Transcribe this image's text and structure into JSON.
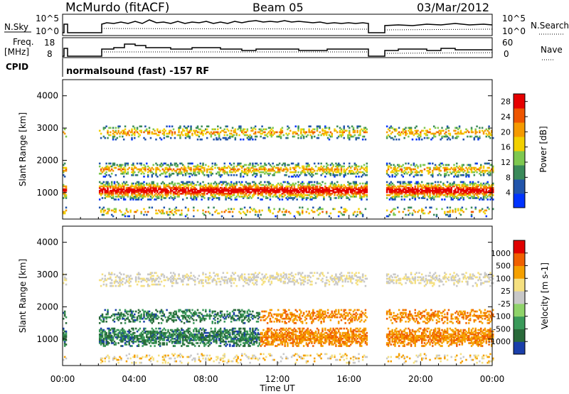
{
  "header": {
    "station": "McMurdo (fitACF)",
    "beam": "Beam 05",
    "date": "03/Mar/2012"
  },
  "sky_panel": {
    "left_label": "N.Sky",
    "right_label": "N.Search",
    "right_ticks": [
      "10^5",
      "10^0"
    ],
    "left_ticks": [
      "10^5",
      "10^0"
    ]
  },
  "freq_panel": {
    "left_label_1": "Freq.",
    "left_label_2": "[MHz]",
    "left_ticks": [
      "18",
      "8"
    ],
    "right_label": "Nave",
    "right_ticks": [
      "60",
      "0"
    ]
  },
  "cpid": {
    "label": "CPID",
    "text": "normalsound (fast) -157 RF"
  },
  "colors": {
    "power_scale": [
      "#0033ff",
      "#2255aa",
      "#3a8a5a",
      "#7ec850",
      "#f2d000",
      "#f59a00",
      "#ee5500",
      "#e60000"
    ],
    "velocity_scale": [
      "#1a3faa",
      "#2a6a3a",
      "#3a9a5a",
      "#8fd36a",
      "#c8c8c8",
      "#f5e080",
      "#f5a000",
      "#f06000",
      "#e00000"
    ]
  },
  "chart_data": [
    {
      "type": "heatmap",
      "title": "",
      "ylabel": "Slant Range [km]",
      "yticks": [
        "1000",
        "2000",
        "3000",
        "4000"
      ],
      "ylim": [
        180,
        4500
      ],
      "xlim": [
        "00:00",
        "24:00"
      ],
      "colorbar": {
        "label": "Power [dB]",
        "ticks": [
          "4",
          "8",
          "12",
          "16",
          "20",
          "24",
          "28"
        ],
        "range": [
          0,
          30
        ]
      },
      "data_gaps_ut": [
        [
          0.2,
          2.0
        ],
        [
          17.0,
          18.0
        ]
      ]
    },
    {
      "type": "heatmap",
      "title": "",
      "ylabel": "Slant Range [km]",
      "yticks": [
        "1000",
        "2000",
        "3000",
        "4000"
      ],
      "ylim": [
        180,
        4500
      ],
      "xlim": [
        "00:00",
        "24:00"
      ],
      "colorbar": {
        "label": "Velocity [m s-1]",
        "ticks": [
          "1000",
          "500",
          "100",
          "25",
          "-25",
          "-100",
          "-500",
          "-1000"
        ]
      },
      "data_gaps_ut": [
        [
          0.2,
          2.0
        ],
        [
          17.0,
          18.0
        ]
      ]
    }
  ],
  "xaxis": {
    "label": "Time UT",
    "ticks": [
      "00:00",
      "04:00",
      "08:00",
      "12:00",
      "16:00",
      "20:00",
      "00:00"
    ]
  }
}
